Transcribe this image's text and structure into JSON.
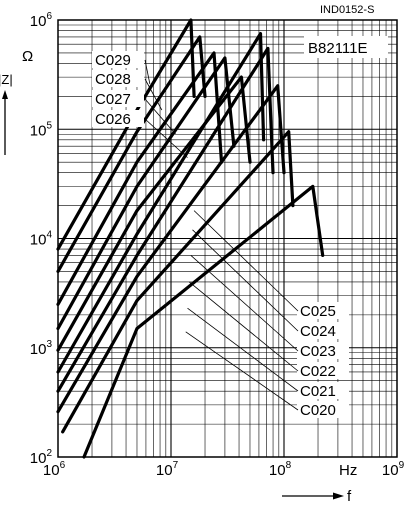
{
  "chart_data": {
    "type": "line",
    "title": "B82111E",
    "doc_id": "IND0152-S",
    "x_scale": "log",
    "y_scale": "log",
    "xlim": [
      1000000,
      1000000000
    ],
    "ylim": [
      100,
      1000000
    ],
    "grid": true,
    "ylabel_symbol": "|Z|",
    "ylabel_unit": "Ω",
    "xlabel_symbol": "f",
    "xlabel_unit": "Hz",
    "x_ticks": [
      {
        "base": "10",
        "exp": "6",
        "value": 1000000
      },
      {
        "base": "10",
        "exp": "7",
        "value": 10000000
      },
      {
        "base": "10",
        "exp": "8",
        "value": 100000000
      },
      {
        "base": "10",
        "exp": "9",
        "value": 1000000000
      }
    ],
    "y_ticks": [
      {
        "base": "10",
        "exp": "2",
        "value": 100
      },
      {
        "base": "10",
        "exp": "3",
        "value": 1000
      },
      {
        "base": "10",
        "exp": "4",
        "value": 10000
      },
      {
        "base": "10",
        "exp": "5",
        "value": 100000
      },
      {
        "base": "10",
        "exp": "6",
        "value": 1000000
      }
    ],
    "labels_left": [
      "C029",
      "C028",
      "C027",
      "C026"
    ],
    "labels_right": [
      "C025",
      "C024",
      "C023",
      "C022",
      "C021",
      "C020"
    ],
    "series": [
      {
        "name": "C029",
        "points": [
          [
            1000000,
            8000
          ],
          [
            5000000,
            150000
          ],
          [
            15000000,
            1000000
          ],
          [
            16000000,
            200000
          ]
        ]
      },
      {
        "name": "C028",
        "points": [
          [
            1000000,
            5000
          ],
          [
            5000000,
            95000
          ],
          [
            18000000,
            700000
          ],
          [
            20000000,
            200000
          ]
        ]
      },
      {
        "name": "C027",
        "points": [
          [
            1000000,
            2500
          ],
          [
            5000000,
            50000
          ],
          [
            24000000,
            500000
          ],
          [
            28000000,
            50000
          ]
        ]
      },
      {
        "name": "C026",
        "points": [
          [
            1000000,
            1500
          ],
          [
            5000000,
            30000
          ],
          [
            30000000,
            450000
          ],
          [
            36000000,
            70000
          ]
        ]
      },
      {
        "name": "C025",
        "points": [
          [
            1000000,
            950
          ],
          [
            5000000,
            18000
          ],
          [
            42000000,
            300000
          ],
          [
            50000000,
            50000
          ]
        ]
      },
      {
        "name": "C024",
        "points": [
          [
            1000000,
            600
          ],
          [
            5000000,
            11000
          ],
          [
            62000000,
            750000
          ],
          [
            66000000,
            80000
          ]
        ]
      },
      {
        "name": "C023",
        "points": [
          [
            1000000,
            400
          ],
          [
            5000000,
            7000
          ],
          [
            72000000,
            550000
          ],
          [
            80000000,
            40000
          ]
        ]
      },
      {
        "name": "C022",
        "points": [
          [
            1000000,
            260
          ],
          [
            5000000,
            4500
          ],
          [
            88000000,
            250000
          ],
          [
            100000000,
            40000
          ]
        ]
      },
      {
        "name": "C021",
        "points": [
          [
            1100000,
            170
          ],
          [
            5000000,
            2700
          ],
          [
            110000000,
            95000
          ],
          [
            120000000,
            20000
          ]
        ]
      },
      {
        "name": "C020",
        "points": [
          [
            1700000,
            100
          ],
          [
            5000000,
            1500
          ],
          [
            180000000,
            30000
          ],
          [
            220000000,
            7000
          ]
        ]
      }
    ]
  }
}
